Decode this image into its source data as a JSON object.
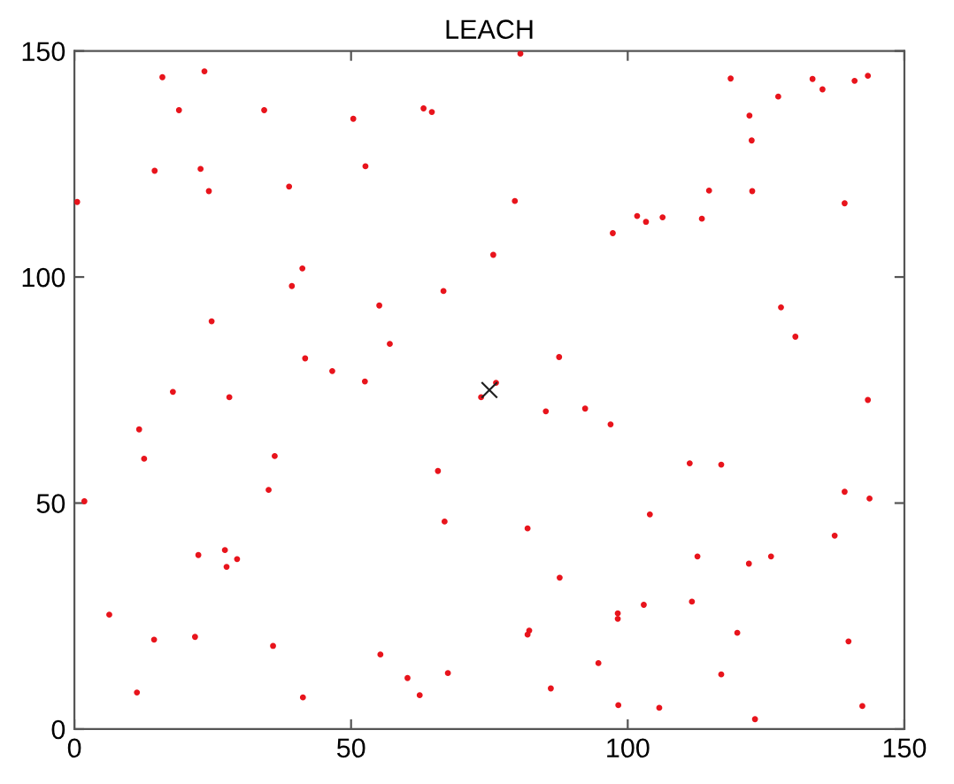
{
  "chart_data": {
    "type": "scatter",
    "title": "LEACH",
    "xlim": [
      0,
      150
    ],
    "ylim": [
      0,
      150
    ],
    "xticks": [
      0,
      50,
      100,
      150
    ],
    "yticks": [
      0,
      50,
      100,
      150
    ],
    "grid": false,
    "legend": false,
    "series": [
      {
        "color": "#e8141c",
        "marker": "circle",
        "x": [
          0.5,
          15.9,
          23.5,
          18.9,
          34.3,
          50.4,
          63.1,
          64.6,
          14.5,
          22.8,
          24.3,
          38.8,
          52.6,
          75.7,
          41.2,
          39.3,
          66.7,
          55.1,
          24.8,
          57.0,
          41.7,
          46.6,
          52.5,
          76.2,
          73.5,
          80.6,
          118.6,
          133.4,
          135.2,
          141.0,
          143.4,
          127.2,
          122.0,
          122.4,
          79.6,
          114.7,
          122.5,
          139.2,
          101.7,
          103.3,
          106.3,
          113.4,
          97.3,
          127.7,
          130.3,
          87.6,
          17.8,
          28.0,
          11.7,
          12.6,
          36.2,
          35.1,
          1.8,
          65.7,
          66.9,
          22.4,
          27.2,
          27.5,
          29.4,
          6.3,
          14.4,
          21.8,
          35.9,
          55.3,
          60.2,
          67.5,
          11.3,
          41.3,
          62.4,
          143.4,
          85.2,
          92.3,
          96.9,
          111.2,
          116.9,
          139.2,
          143.7,
          104.0,
          137.4,
          81.9,
          112.6,
          121.9,
          125.9,
          87.7,
          102.9,
          111.6,
          98.2,
          98.2,
          82.2,
          81.9,
          119.8,
          139.9,
          94.7,
          116.9,
          86.1,
          98.3,
          105.7,
          123.0,
          142.4
        ],
        "values": [
          116.6,
          144.2,
          145.5,
          136.9,
          136.9,
          135.0,
          137.3,
          136.5,
          123.5,
          123.9,
          119.0,
          120.0,
          124.5,
          104.9,
          101.9,
          98.0,
          96.9,
          93.7,
          90.2,
          85.2,
          82.0,
          79.2,
          76.9,
          76.6,
          73.4,
          149.4,
          143.9,
          143.8,
          141.5,
          143.4,
          144.5,
          139.9,
          135.7,
          130.2,
          116.8,
          119.1,
          119.0,
          116.3,
          113.5,
          112.2,
          113.2,
          112.9,
          109.7,
          93.3,
          86.8,
          82.3,
          74.6,
          73.4,
          66.3,
          59.8,
          60.4,
          52.9,
          50.4,
          57.1,
          45.9,
          38.5,
          39.6,
          35.9,
          37.6,
          25.3,
          19.8,
          20.4,
          18.4,
          16.5,
          11.3,
          12.4,
          8.1,
          7.0,
          7.5,
          72.8,
          70.3,
          70.9,
          67.4,
          58.8,
          58.5,
          52.5,
          51.0,
          47.5,
          42.8,
          44.4,
          38.2,
          36.6,
          38.2,
          33.5,
          27.5,
          28.2,
          25.6,
          24.4,
          21.8,
          20.9,
          21.3,
          19.4,
          14.6,
          12.1,
          9.0,
          5.3,
          4.7,
          2.2,
          5.1
        ]
      },
      {
        "color": "#202020",
        "marker": "cross",
        "x": [
          75
        ],
        "values": [
          75
        ]
      }
    ]
  }
}
